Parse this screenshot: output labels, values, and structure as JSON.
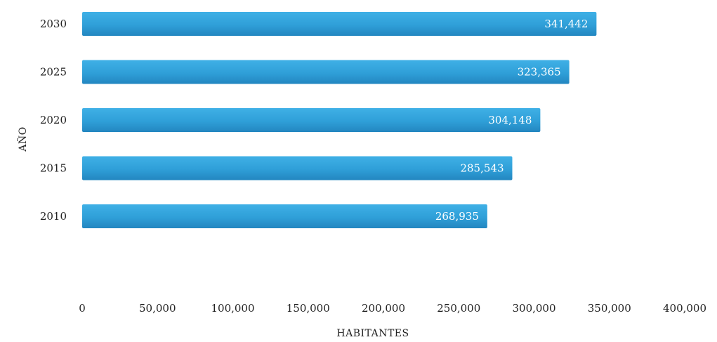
{
  "chart_data": {
    "type": "bar",
    "orientation": "horizontal",
    "categories": [
      "2030",
      "2025",
      "2020",
      "2015",
      "2010"
    ],
    "values": [
      341442,
      323365,
      304148,
      285543,
      268935
    ],
    "data_labels": [
      "341,442",
      "323,365",
      "304,148",
      "285,543",
      "268,935"
    ],
    "x_ticks": [
      "0",
      "50,000",
      "100,000",
      "150,000",
      "200,000",
      "250,000",
      "300,000",
      "350,000",
      "400,000"
    ],
    "x_tick_values": [
      0,
      50000,
      100000,
      150000,
      200000,
      250000,
      300000,
      350000,
      400000
    ],
    "xlim": [
      0,
      400000
    ],
    "xlabel": "HABITANTES",
    "ylabel": "AÑO",
    "grid": false,
    "legend": "none",
    "bar_color": "#2f9fd8"
  }
}
